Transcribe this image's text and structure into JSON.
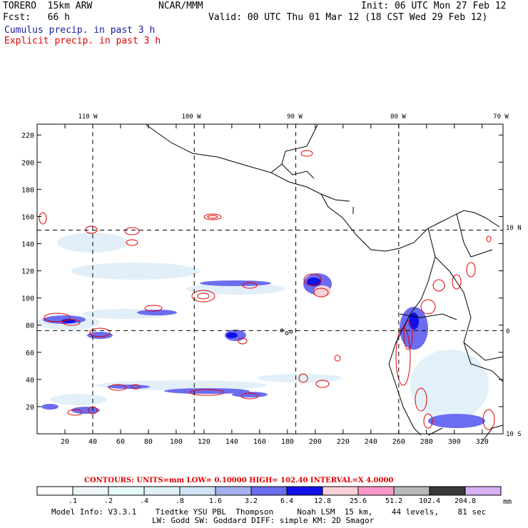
{
  "header": {
    "model": "TORERO  15km ARW",
    "center": "NCAR/MMM",
    "init": "Init: 06 UTC Mon 27 Feb 12",
    "fcst": "Fcst:   66 h",
    "valid": "Valid: 00 UTC Thu 01 Mar 12 (18 CST Wed 29 Feb 12)",
    "field1": "Cumulus precip. in past 3 h",
    "field2": "Explicit precip. in past 3 h",
    "field1_color": "#1a1aa6",
    "field2_color": "#e00000"
  },
  "map": {
    "top_lon_labels": [
      "110 W",
      "100 W",
      "90 W",
      "80 W",
      "70 W"
    ],
    "right_lat_labels": [
      "10 N",
      "0",
      "10 S"
    ],
    "y_ticks": [
      20,
      40,
      60,
      80,
      100,
      120,
      140,
      160,
      180,
      200,
      220
    ],
    "x_ticks": [
      20,
      40,
      60,
      80,
      100,
      120,
      140,
      160,
      180,
      200,
      220,
      240,
      260,
      280,
      300,
      320
    ],
    "grid_x": [
      40,
      113,
      186,
      260
    ],
    "grid_y": [
      76,
      150
    ],
    "xlim": [
      0,
      335
    ],
    "ylim": [
      0,
      228
    ]
  },
  "contours": {
    "label": "CONTOURS:  UNITS=mm  LOW= 0.10000     HIGH=  102.40     INTERVAL=X  4.0000",
    "color": "#e00000"
  },
  "colorbar": {
    "labels": [
      ".1",
      ".2",
      ".4",
      ".8",
      "1.6",
      "3.2",
      "6.4",
      "12.8",
      "25.6",
      "51.2",
      "102.4",
      "204.8"
    ],
    "colors": [
      "#ffffff",
      "#eef6fb",
      "#e6fbfb",
      "#dff0f7",
      "#cfe3f5",
      "#a6b0f0",
      "#6c6cf0",
      "#1010e8",
      "#f8d0d8",
      "#ff99cc",
      "#b8b8b8",
      "#383838",
      "#d7b0f5"
    ],
    "unit": "mm"
  },
  "footer": {
    "line1": "Model Info: V3.3.1    Tiedtke YSU PBL  Thompson     Noah LSM  15 km,    44 levels,    81 sec",
    "line2": "LW: Godd SW: Goddard DIFF: simple KM: 2D Smagor"
  }
}
